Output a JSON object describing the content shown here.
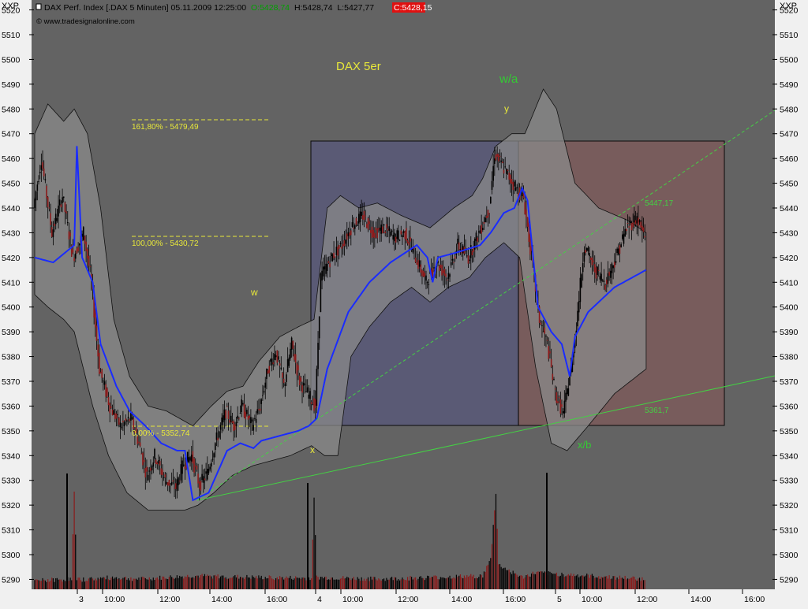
{
  "window": {
    "corner_left": "XXP",
    "corner_right": "XXP"
  },
  "header": {
    "instrument": "DAX Perf. Index [.DAX  5 Minuten] 05.11.2009 12:25:00",
    "open": "O:5428,74",
    "high": "H:5428,74",
    "low": "L:5427,77",
    "close": "C:5428,15",
    "copyright": "© www.tradesignalonline.com"
  },
  "annotations": {
    "title": "DAX 5er",
    "wave_wa": "w/a",
    "wave_y": "y",
    "wave_w": "w",
    "wave_x": "x",
    "wave_xb": "x/b",
    "fib_161": "161,80% - 5479,49",
    "fib_100": "100,00% - 5430,72",
    "fib_0": "0,00% - 5352,74",
    "trend_upper": "5447,17",
    "trend_lower": "5361,7"
  },
  "colors": {
    "plot_bg": "#636363",
    "frame_bg": "#f0f0f0",
    "band_fill": "#7b7b7b",
    "candle_up": "#000000",
    "candle_down": "#8b1a1a",
    "avg_line": "#1a2cff",
    "fib_yellow": "#e8e83a",
    "wave_green": "#33cc33",
    "box_blue": "#5a5a78",
    "box_brown": "#7b5c5c",
    "close_red": "#e01010",
    "open_green": "#00b000"
  },
  "chart_data": {
    "type": "candlestick",
    "title": "DAX 5er",
    "y_ticks": [
      "5520",
      "5510",
      "5500",
      "5490",
      "5480",
      "5470",
      "5460",
      "5450",
      "5440",
      "5430",
      "5420",
      "5410",
      "5400",
      "5390",
      "5380",
      "5370",
      "5360",
      "5350",
      "5340",
      "5330",
      "5320",
      "5310",
      "5300",
      "5290"
    ],
    "ylim": [
      5286,
      5524
    ],
    "x_ticks": [
      "3",
      "10:00",
      "12:00",
      "14:00",
      "16:00",
      "4",
      "10:00",
      "12:00",
      "14:00",
      "16:00",
      "5",
      "10:00",
      "12:00",
      "14:00",
      "16:00"
    ],
    "fib_levels": [
      5479.49,
      5430.72,
      5352.74
    ],
    "price_path": [
      [
        0,
        5440
      ],
      [
        6,
        5460
      ],
      [
        14,
        5430
      ],
      [
        22,
        5445
      ],
      [
        30,
        5420
      ],
      [
        38,
        5430
      ],
      [
        44,
        5410
      ],
      [
        50,
        5375
      ],
      [
        58,
        5360
      ],
      [
        66,
        5352
      ],
      [
        74,
        5355
      ],
      [
        80,
        5345
      ],
      [
        86,
        5332
      ],
      [
        92,
        5340
      ],
      [
        100,
        5330
      ],
      [
        108,
        5327
      ],
      [
        114,
        5337
      ],
      [
        120,
        5340
      ],
      [
        126,
        5328
      ],
      [
        132,
        5333
      ],
      [
        138,
        5345
      ],
      [
        146,
        5358
      ],
      [
        152,
        5352
      ],
      [
        158,
        5360
      ],
      [
        166,
        5352
      ],
      [
        172,
        5360
      ],
      [
        178,
        5375
      ],
      [
        184,
        5382
      ],
      [
        190,
        5368
      ],
      [
        196,
        5385
      ],
      [
        202,
        5370
      ],
      [
        208,
        5365
      ],
      [
        214,
        5360
      ],
      [
        218,
        5412
      ],
      [
        226,
        5420
      ],
      [
        234,
        5425
      ],
      [
        242,
        5433
      ],
      [
        250,
        5437
      ],
      [
        258,
        5430
      ],
      [
        266,
        5432
      ],
      [
        274,
        5428
      ],
      [
        282,
        5430
      ],
      [
        290,
        5420
      ],
      [
        298,
        5410
      ],
      [
        306,
        5418
      ],
      [
        314,
        5412
      ],
      [
        322,
        5425
      ],
      [
        330,
        5420
      ],
      [
        338,
        5430
      ],
      [
        346,
        5440
      ],
      [
        350,
        5462
      ],
      [
        358,
        5455
      ],
      [
        366,
        5448
      ],
      [
        372,
        5444
      ],
      [
        378,
        5420
      ],
      [
        384,
        5395
      ],
      [
        390,
        5385
      ],
      [
        396,
        5365
      ],
      [
        402,
        5357
      ],
      [
        408,
        5375
      ],
      [
        412,
        5393
      ],
      [
        418,
        5425
      ],
      [
        426,
        5415
      ],
      [
        434,
        5410
      ],
      [
        442,
        5420
      ],
      [
        450,
        5432
      ],
      [
        458,
        5436
      ],
      [
        464,
        5428
      ]
    ],
    "volume_path": [
      [
        0,
        8
      ],
      [
        28,
        10
      ],
      [
        30,
        120
      ],
      [
        32,
        9
      ],
      [
        60,
        12
      ],
      [
        80,
        10
      ],
      [
        120,
        14
      ],
      [
        170,
        12
      ],
      [
        210,
        11
      ],
      [
        212,
        115
      ],
      [
        214,
        12
      ],
      [
        260,
        10
      ],
      [
        300,
        12
      ],
      [
        340,
        14
      ],
      [
        346,
        35
      ],
      [
        350,
        120
      ],
      [
        352,
        28
      ],
      [
        370,
        12
      ],
      [
        380,
        18
      ],
      [
        420,
        14
      ],
      [
        464,
        10
      ]
    ],
    "avg_path": [
      [
        0,
        5420
      ],
      [
        14,
        5418
      ],
      [
        30,
        5425
      ],
      [
        32,
        5465
      ],
      [
        36,
        5420
      ],
      [
        44,
        5410
      ],
      [
        50,
        5385
      ],
      [
        62,
        5368
      ],
      [
        72,
        5358
      ],
      [
        84,
        5352
      ],
      [
        96,
        5345
      ],
      [
        108,
        5342
      ],
      [
        114,
        5342
      ],
      [
        120,
        5322
      ],
      [
        132,
        5325
      ],
      [
        146,
        5342
      ],
      [
        156,
        5345
      ],
      [
        166,
        5343
      ],
      [
        172,
        5346
      ],
      [
        186,
        5348
      ],
      [
        200,
        5350
      ],
      [
        208,
        5352
      ],
      [
        214,
        5355
      ],
      [
        216,
        5360
      ],
      [
        222,
        5375
      ],
      [
        238,
        5398
      ],
      [
        254,
        5410
      ],
      [
        270,
        5418
      ],
      [
        290,
        5425
      ],
      [
        298,
        5420
      ],
      [
        302,
        5410
      ],
      [
        306,
        5420
      ],
      [
        320,
        5422
      ],
      [
        338,
        5425
      ],
      [
        346,
        5430
      ],
      [
        356,
        5438
      ],
      [
        364,
        5440
      ],
      [
        370,
        5448
      ],
      [
        374,
        5443
      ],
      [
        382,
        5400
      ],
      [
        392,
        5390
      ],
      [
        400,
        5385
      ],
      [
        406,
        5372
      ],
      [
        410,
        5388
      ],
      [
        420,
        5398
      ],
      [
        440,
        5408
      ],
      [
        464,
        5415
      ]
    ],
    "band_upper": [
      [
        0,
        5470
      ],
      [
        10,
        5482
      ],
      [
        22,
        5475
      ],
      [
        30,
        5480
      ],
      [
        40,
        5470
      ],
      [
        50,
        5440
      ],
      [
        60,
        5395
      ],
      [
        72,
        5372
      ],
      [
        86,
        5360
      ],
      [
        100,
        5358
      ],
      [
        120,
        5352
      ],
      [
        134,
        5360
      ],
      [
        146,
        5366
      ],
      [
        158,
        5368
      ],
      [
        170,
        5378
      ],
      [
        186,
        5388
      ],
      [
        200,
        5392
      ],
      [
        212,
        5395
      ],
      [
        222,
        5440
      ],
      [
        232,
        5445
      ],
      [
        246,
        5440
      ],
      [
        260,
        5442
      ],
      [
        278,
        5437
      ],
      [
        300,
        5432
      ],
      [
        318,
        5440
      ],
      [
        332,
        5445
      ],
      [
        340,
        5452
      ],
      [
        350,
        5465
      ],
      [
        362,
        5470
      ],
      [
        372,
        5470
      ],
      [
        386,
        5488
      ],
      [
        396,
        5480
      ],
      [
        410,
        5450
      ],
      [
        428,
        5440
      ],
      [
        450,
        5435
      ],
      [
        464,
        5430
      ]
    ],
    "band_lower": [
      [
        0,
        5405
      ],
      [
        10,
        5400
      ],
      [
        22,
        5395
      ],
      [
        30,
        5390
      ],
      [
        44,
        5360
      ],
      [
        56,
        5340
      ],
      [
        70,
        5325
      ],
      [
        86,
        5318
      ],
      [
        100,
        5318
      ],
      [
        114,
        5318
      ],
      [
        124,
        5320
      ],
      [
        136,
        5325
      ],
      [
        150,
        5332
      ],
      [
        166,
        5336
      ],
      [
        180,
        5338
      ],
      [
        194,
        5340
      ],
      [
        210,
        5344
      ],
      [
        220,
        5340
      ],
      [
        230,
        5340
      ],
      [
        240,
        5380
      ],
      [
        254,
        5392
      ],
      [
        270,
        5402
      ],
      [
        286,
        5408
      ],
      [
        300,
        5402
      ],
      [
        314,
        5408
      ],
      [
        330,
        5412
      ],
      [
        342,
        5420
      ],
      [
        356,
        5426
      ],
      [
        368,
        5420
      ],
      [
        380,
        5376
      ],
      [
        392,
        5345
      ],
      [
        404,
        5342
      ],
      [
        420,
        5352
      ],
      [
        440,
        5365
      ],
      [
        464,
        5375
      ]
    ]
  }
}
